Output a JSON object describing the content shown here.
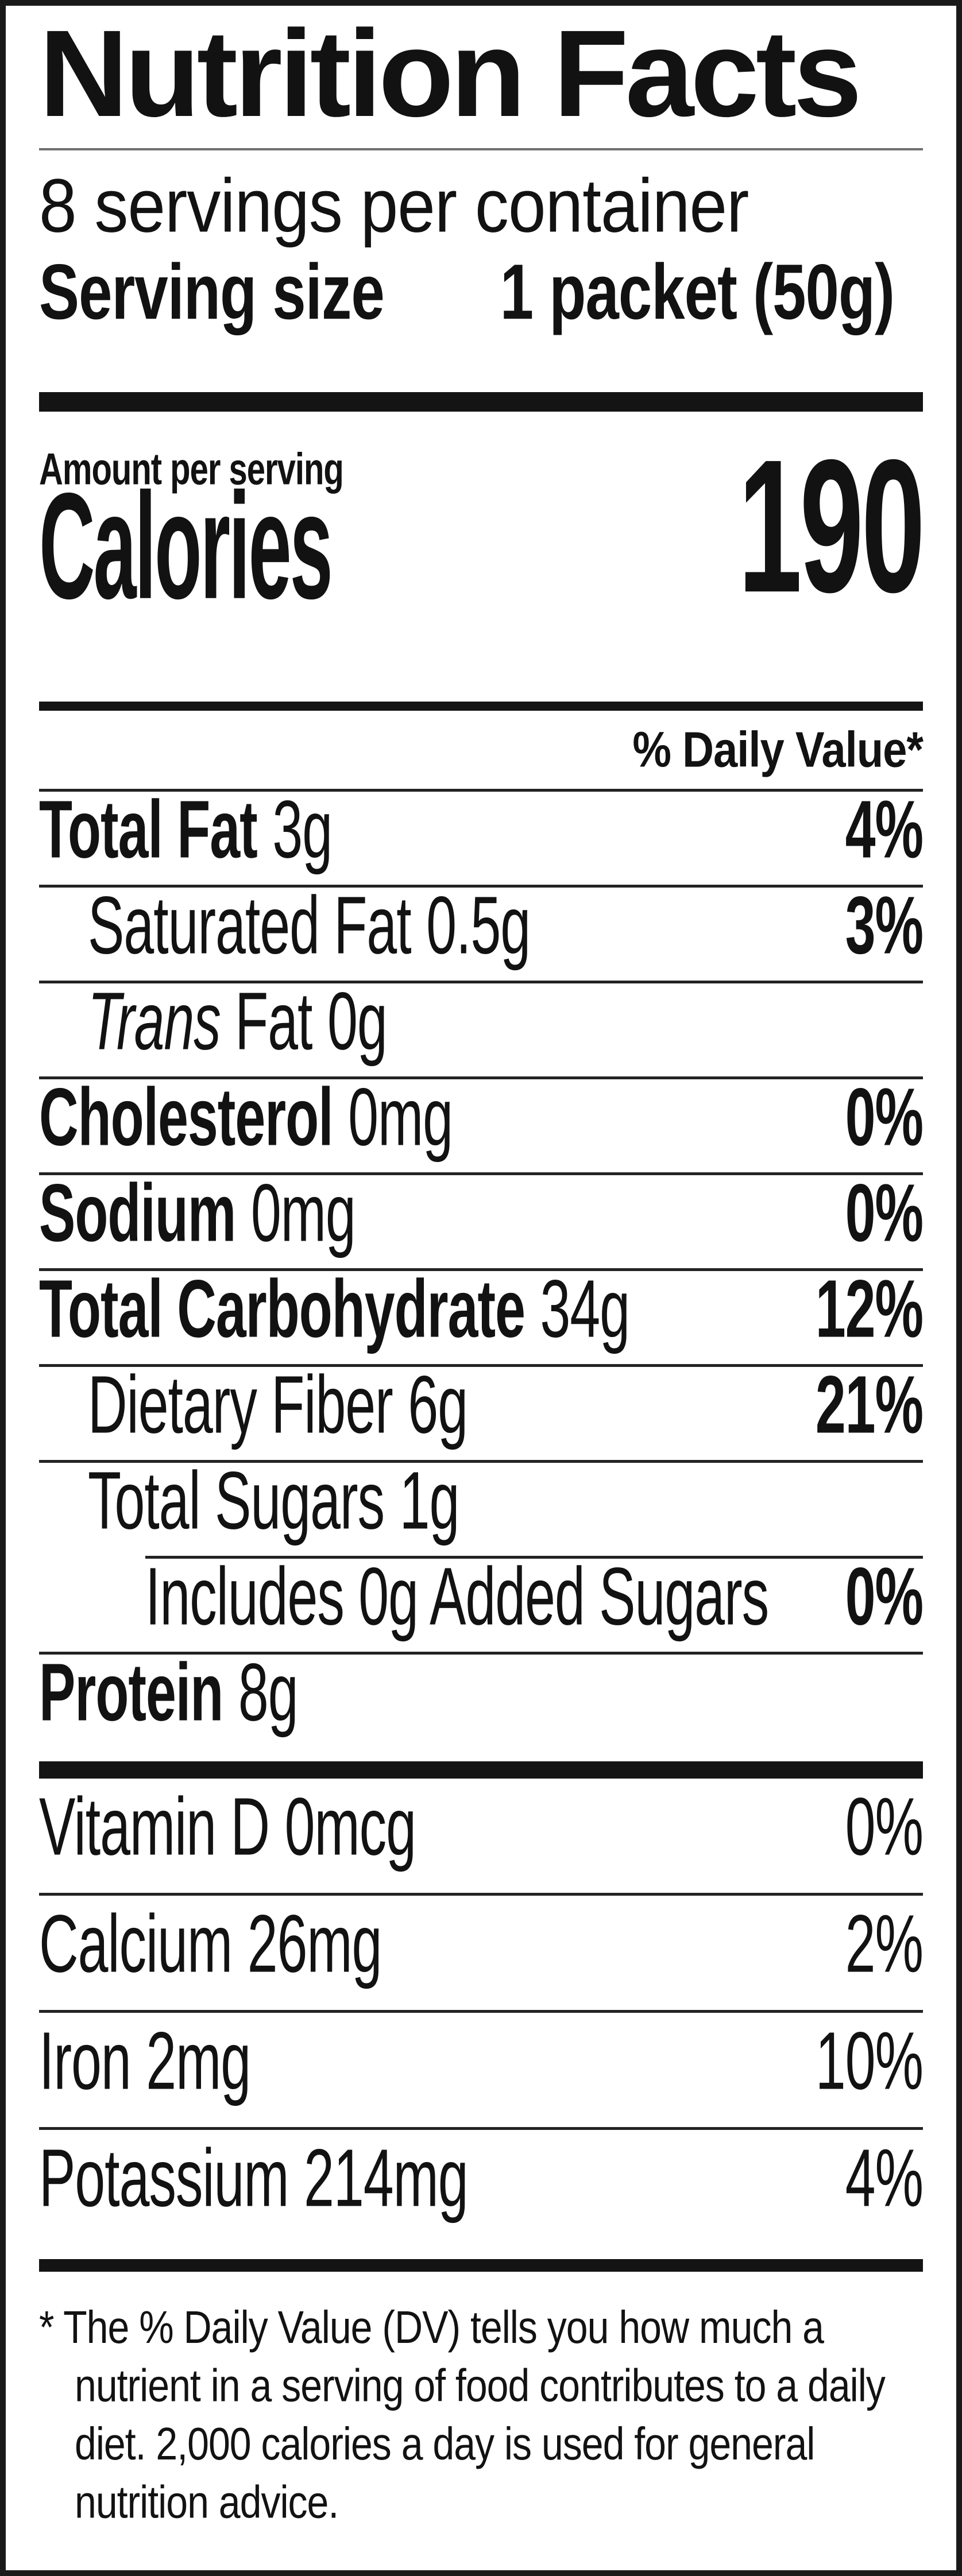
{
  "label": {
    "title": "Nutrition Facts",
    "servings_per_container": "8 servings per container",
    "serving_size": {
      "label": "Serving size",
      "value": "1 packet (50g)"
    },
    "amount_per_serving": "Amount per serving",
    "calories": {
      "label": "Calories",
      "value": "190"
    },
    "daily_value_header": "% Daily Value*",
    "nutrients": [
      {
        "name_bold": "Total Fat",
        "name_italic": "",
        "name_rest": "",
        "amount": "3g",
        "dv": "4%"
      },
      {
        "name_bold": "",
        "name_italic": "",
        "name_rest": "Saturated Fat",
        "amount": "0.5g",
        "dv": "3%"
      },
      {
        "name_bold": "",
        "name_italic": "Trans",
        "name_rest": " Fat",
        "amount": "0g",
        "dv": ""
      },
      {
        "name_bold": "Cholesterol",
        "name_italic": "",
        "name_rest": "",
        "amount": "0mg",
        "dv": "0%"
      },
      {
        "name_bold": "Sodium",
        "name_italic": "",
        "name_rest": "",
        "amount": "0mg",
        "dv": "0%"
      },
      {
        "name_bold": "Total Carbohydrate",
        "name_italic": "",
        "name_rest": "",
        "amount": "34g",
        "dv": "12%"
      },
      {
        "name_bold": "",
        "name_italic": "",
        "name_rest": "Dietary Fiber",
        "amount": "6g",
        "dv": "21%"
      },
      {
        "name_bold": "",
        "name_italic": "",
        "name_rest": "Total Sugars",
        "amount": "1g",
        "dv": ""
      },
      {
        "name_bold": "",
        "name_italic": "",
        "name_rest": "Includes 0g Added Sugars",
        "amount": "",
        "dv": "0%"
      },
      {
        "name_bold": "Protein",
        "name_italic": "",
        "name_rest": "",
        "amount": "8g",
        "dv": ""
      }
    ],
    "vitamins": [
      {
        "name": "Vitamin D",
        "amount": "0mcg",
        "dv": "0%"
      },
      {
        "name": "Calcium",
        "amount": "26mg",
        "dv": "2%"
      },
      {
        "name": "Iron",
        "amount": "2mg",
        "dv": "10%"
      },
      {
        "name": "Potassium",
        "amount": "214mg",
        "dv": "4%"
      }
    ],
    "footnote": "* The % Daily Value (DV) tells you how much a nutrient in a serving of food contributes to a daily diet. 2,000 calories a day is used for general nutrition advice."
  }
}
